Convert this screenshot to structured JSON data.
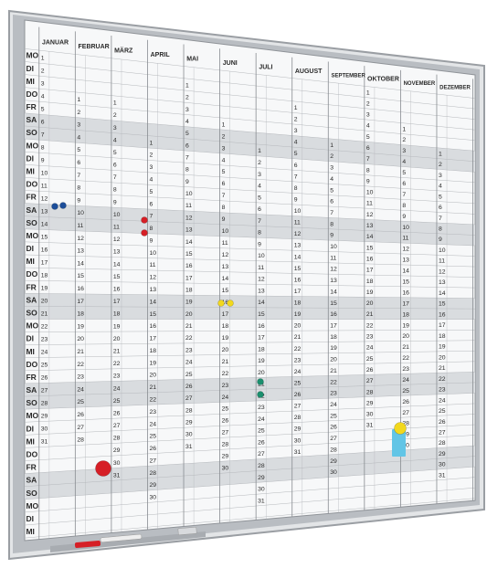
{
  "weekdays": [
    "MO",
    "DI",
    "MI",
    "DO",
    "FR",
    "SA",
    "SO",
    "MO",
    "DI",
    "MI",
    "DO",
    "FR",
    "SA",
    "SO",
    "MO",
    "DI",
    "MI",
    "DO",
    "FR",
    "SA",
    "SO",
    "MO",
    "DI",
    "MI",
    "DO",
    "FR",
    "SA",
    "SO",
    "MO",
    "DI",
    "MI",
    "DO",
    "FR",
    "SA",
    "SO",
    "MO",
    "DI",
    "MI"
  ],
  "months": [
    {
      "name": "JANUAR",
      "start_row": 0,
      "days": 31
    },
    {
      "name": "FEBRUAR",
      "start_row": 3,
      "days": 28
    },
    {
      "name": "MÄRZ",
      "start_row": 3,
      "days": 31
    },
    {
      "name": "APRIL",
      "start_row": 6,
      "days": 30
    },
    {
      "name": "MAI",
      "start_row": 1,
      "days": 31
    },
    {
      "name": "JUNI",
      "start_row": 4,
      "days": 30
    },
    {
      "name": "JULI",
      "start_row": 6,
      "days": 31
    },
    {
      "name": "AUGUST",
      "start_row": 2,
      "days": 31
    },
    {
      "name": "SEPTEMBER",
      "start_row": 5,
      "days": 30
    },
    {
      "name": "OKTOBER",
      "start_row": 0,
      "days": 31
    },
    {
      "name": "NOVEMBER",
      "start_row": 3,
      "days": 30
    },
    {
      "name": "DEZEMBER",
      "start_row": 5,
      "days": 31
    }
  ],
  "weekend_labels": [
    "SA",
    "SO"
  ],
  "colors": {
    "frame": "#c9ccd0",
    "board": "#f7f8f9",
    "weekend_shade": "#d9dcdf",
    "grid": "#b5b8bc",
    "text": "#2a2a2a",
    "magnet_blue": "#1d4e9a",
    "magnet_red": "#d61f26",
    "magnet_yellow": "#f2d81d",
    "magnet_green": "#1b8f6e",
    "card_cyan": "#62c5e6"
  },
  "magnets": [
    {
      "name": "magnet-blue-1",
      "color": "blue"
    },
    {
      "name": "magnet-blue-2",
      "color": "blue"
    },
    {
      "name": "magnet-red-1",
      "color": "red"
    },
    {
      "name": "magnet-red-2",
      "color": "red"
    },
    {
      "name": "magnet-yellow-1",
      "color": "yellow"
    },
    {
      "name": "magnet-yellow-2",
      "color": "yellow"
    },
    {
      "name": "magnet-green-1",
      "color": "green"
    },
    {
      "name": "magnet-green-2",
      "color": "green"
    },
    {
      "name": "magnet-red-large",
      "color": "red"
    },
    {
      "name": "magnet-yellow-card",
      "color": "yellow"
    }
  ],
  "accessories": [
    "marker-pen",
    "eraser-tray"
  ]
}
